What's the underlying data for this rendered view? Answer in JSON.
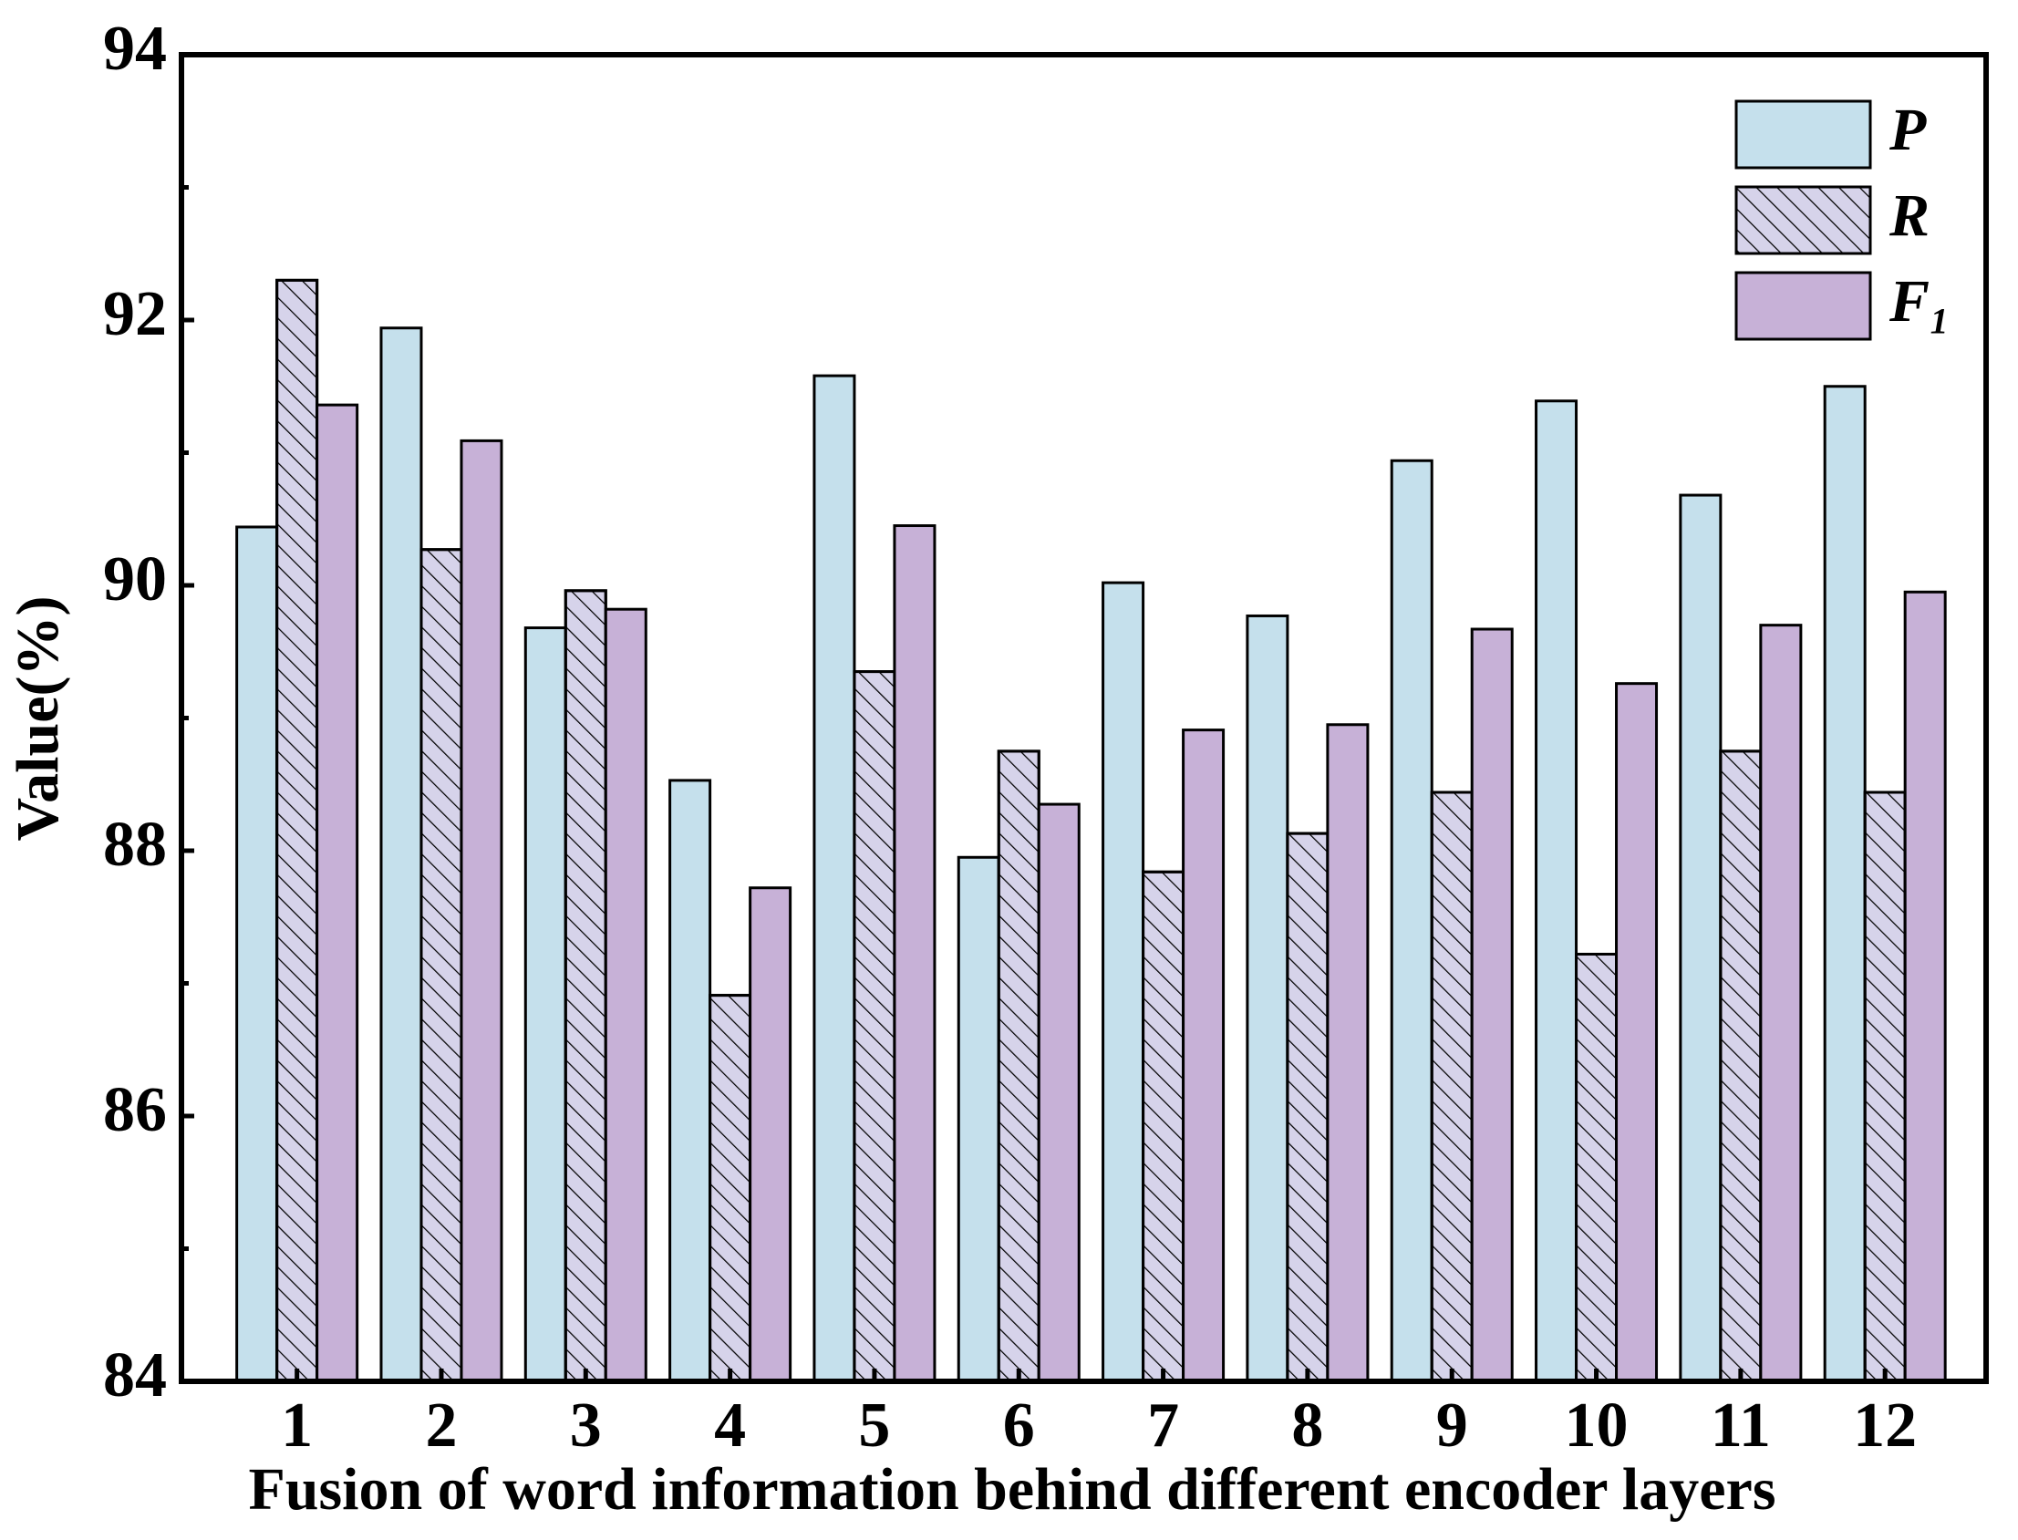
{
  "chart_data": {
    "type": "bar",
    "x_label": "Fusion of word information behind different encoder layers",
    "y_label": "Value(%)",
    "categories": [
      "1",
      "2",
      "3",
      "4",
      "5",
      "6",
      "7",
      "8",
      "9",
      "10",
      "11",
      "12"
    ],
    "series": [
      {
        "name": "P",
        "color": "#c5e0ec",
        "values": [
          90.44,
          91.94,
          89.68,
          88.53,
          91.58,
          87.95,
          90.02,
          89.77,
          90.94,
          91.39,
          90.68,
          91.5
        ]
      },
      {
        "name": "R",
        "color": "#d6d3ea",
        "hatch": true,
        "values": [
          92.3,
          90.27,
          89.96,
          86.91,
          89.35,
          88.75,
          87.84,
          88.13,
          88.44,
          87.22,
          88.75,
          88.44
        ]
      },
      {
        "name": "F₁",
        "color": "#c7b1d7",
        "values": [
          91.36,
          91.09,
          89.82,
          87.72,
          90.45,
          88.35,
          88.91,
          88.95,
          89.67,
          89.26,
          89.7,
          89.95
        ]
      }
    ],
    "ylim": [
      84,
      94
    ],
    "yticks": [
      84,
      86,
      88,
      90,
      92,
      94
    ],
    "legend": "upper-right"
  }
}
